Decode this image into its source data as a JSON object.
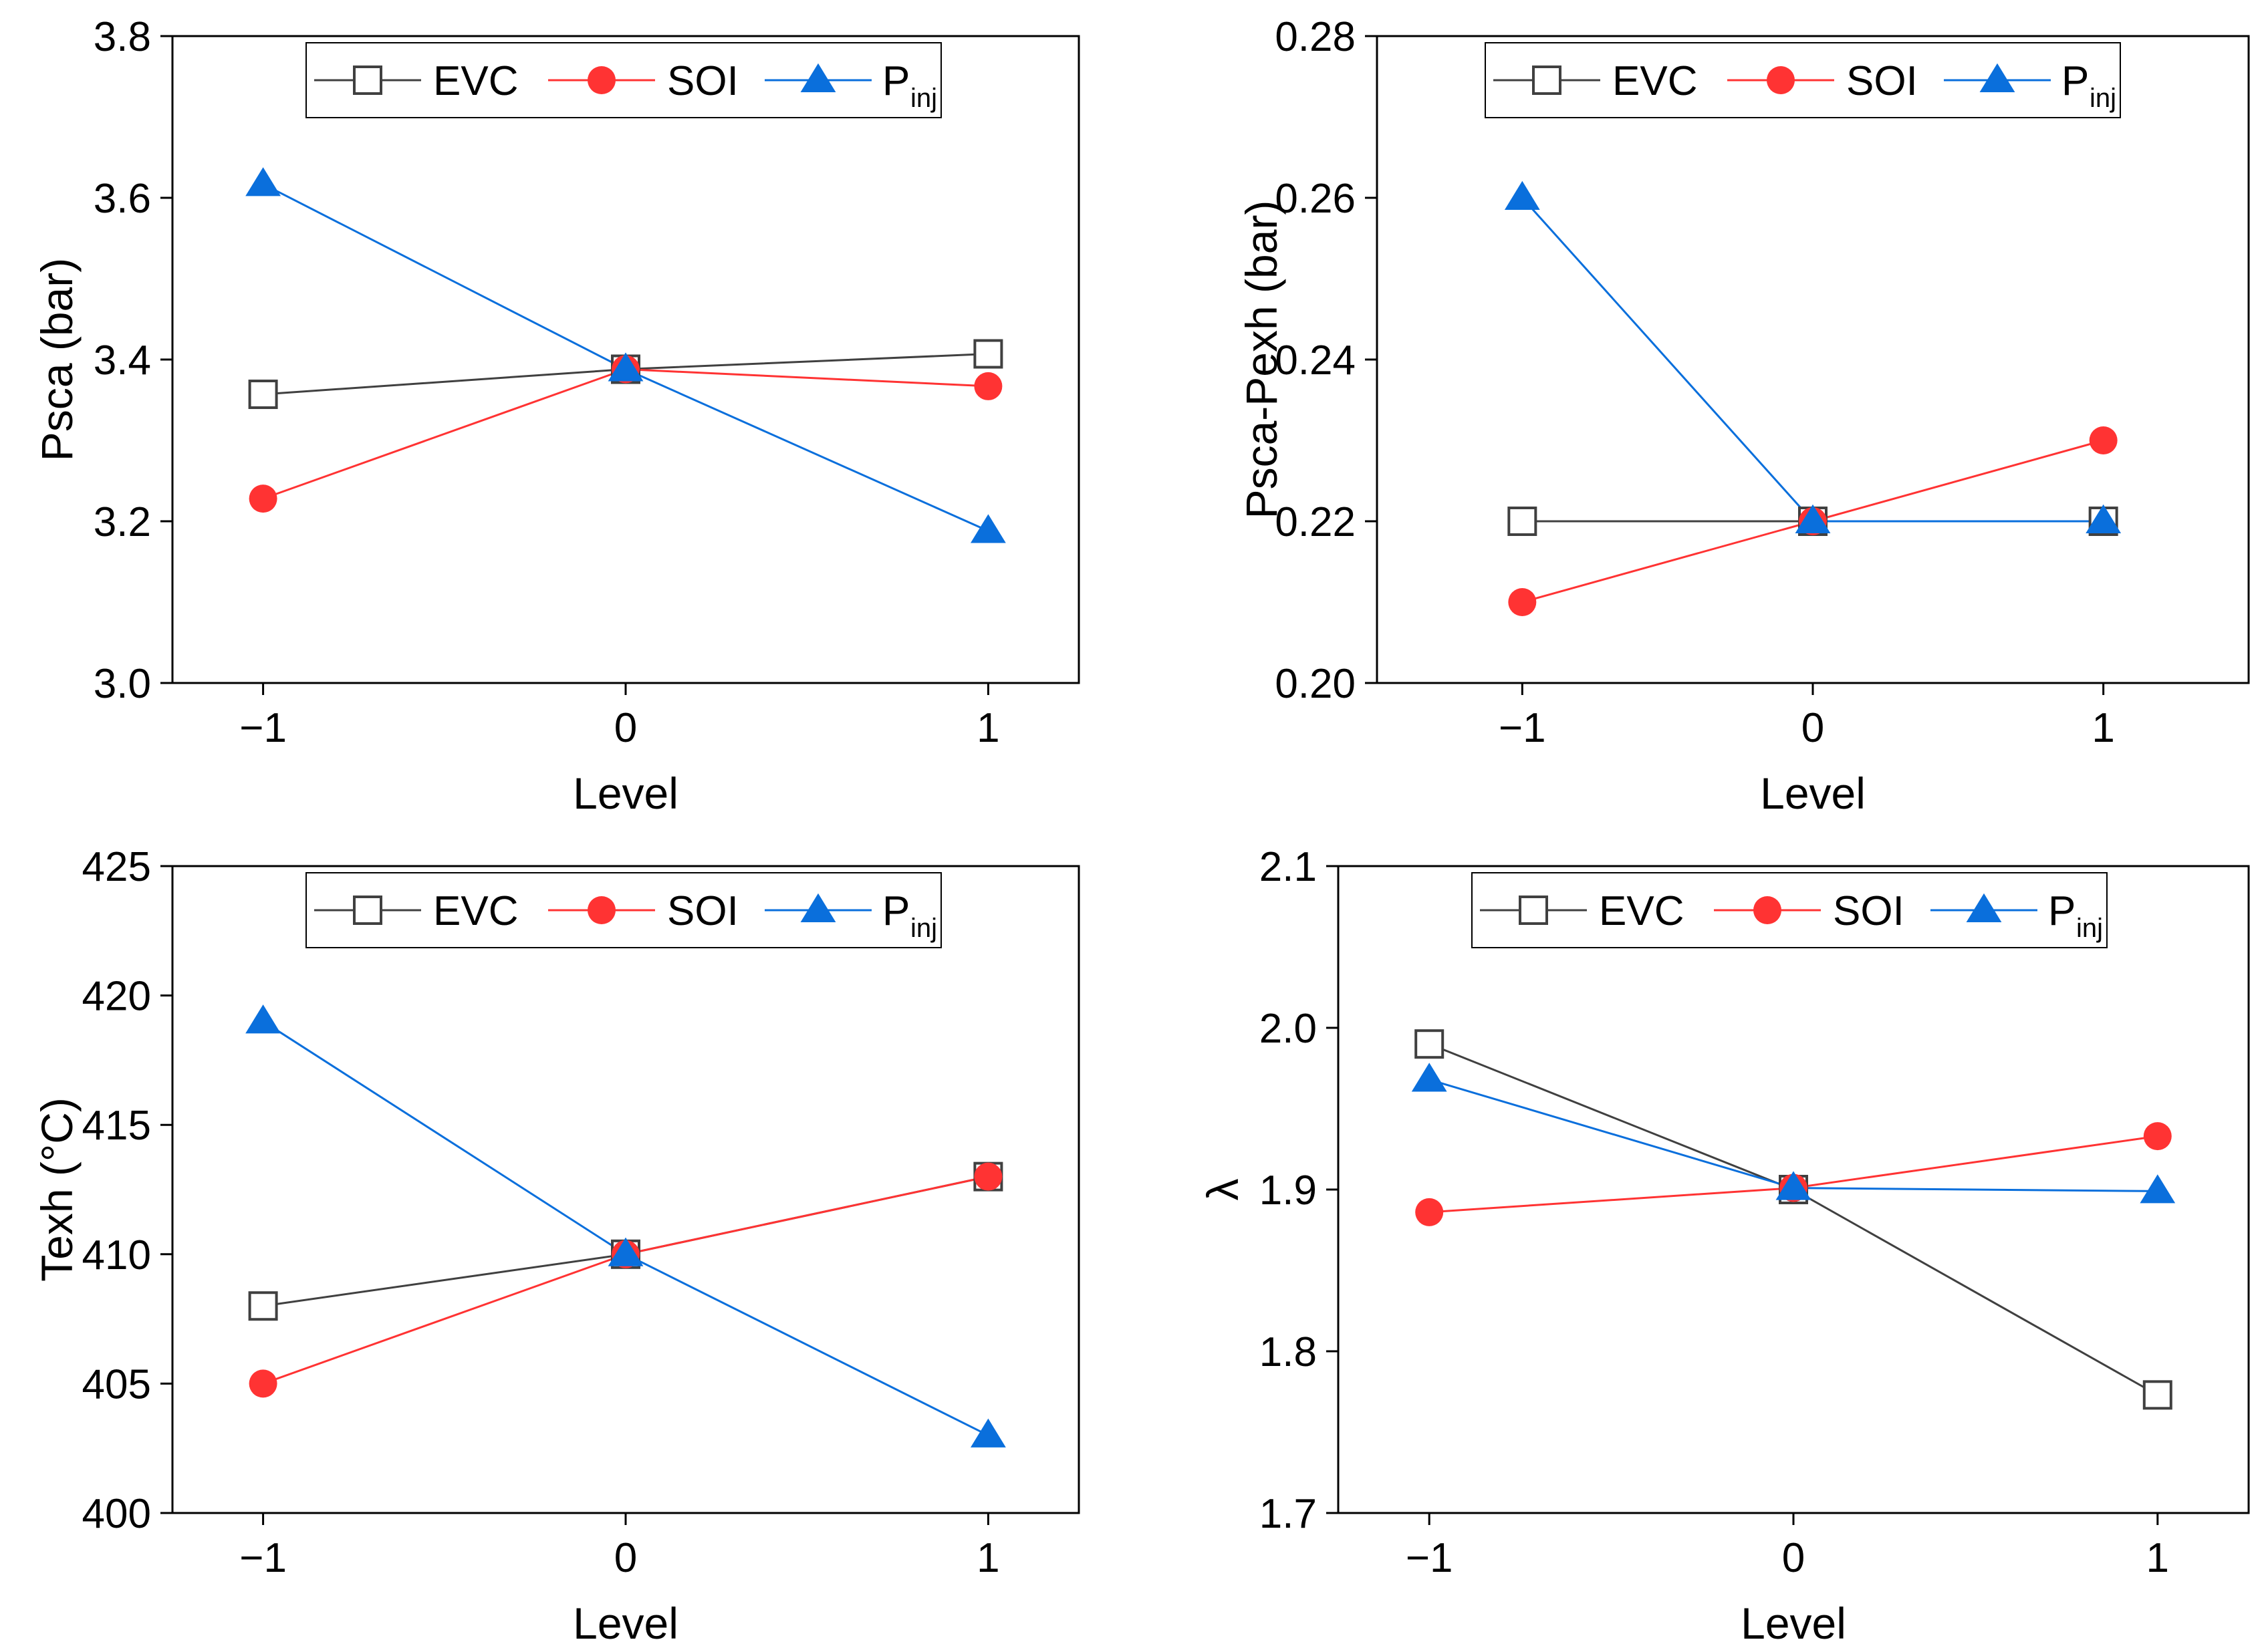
{
  "colors": {
    "EVC": "#404040",
    "SOI": "#ff3333",
    "Pinj": "#0a6fdc",
    "axis": "#000000"
  },
  "legend": {
    "EVC": "EVC",
    "SOI": "SOI",
    "Pinj_main": "P",
    "Pinj_sub": "inj"
  },
  "chart_data": [
    {
      "type": "line",
      "xlabel": "Level",
      "ylabel": "Psca (bar)",
      "x": [
        -1,
        0,
        1
      ],
      "x_tick_labels": [
        "−1",
        "0",
        "1"
      ],
      "xlim": [
        -1.25,
        1.25
      ],
      "ylim": [
        3.0,
        3.8
      ],
      "y_ticks": [
        3.0,
        3.2,
        3.4,
        3.6,
        3.8
      ],
      "y_tick_labels": [
        "3.0",
        "3.2",
        "3.4",
        "3.6",
        "3.8"
      ],
      "legend_position": "top-center",
      "series": [
        {
          "name": "EVC",
          "marker": "square-open",
          "values": [
            3.357,
            3.388,
            3.407
          ]
        },
        {
          "name": "SOI",
          "marker": "circle",
          "values": [
            3.228,
            3.388,
            3.367
          ]
        },
        {
          "name": "Pinj",
          "marker": "triangle",
          "values": [
            3.617,
            3.388,
            3.188
          ]
        }
      ]
    },
    {
      "type": "line",
      "xlabel": "Level",
      "ylabel": "Psca-Pexh (bar)",
      "x": [
        -1,
        0,
        1
      ],
      "x_tick_labels": [
        "−1",
        "0",
        "1"
      ],
      "xlim": [
        -1.5,
        1.5
      ],
      "ylim": [
        0.2,
        0.28
      ],
      "y_ticks": [
        0.2,
        0.22,
        0.24,
        0.26,
        0.28
      ],
      "y_tick_labels": [
        "0.20",
        "0.22",
        "0.24",
        "0.26",
        "0.28"
      ],
      "legend_position": "top-center",
      "series": [
        {
          "name": "EVC",
          "marker": "square-open",
          "values": [
            0.22,
            0.22,
            0.22
          ]
        },
        {
          "name": "SOI",
          "marker": "circle",
          "values": [
            0.21,
            0.22,
            0.23
          ]
        },
        {
          "name": "Pinj",
          "marker": "triangle",
          "values": [
            0.26,
            0.22,
            0.22
          ]
        }
      ]
    },
    {
      "type": "line",
      "xlabel": "Level",
      "ylabel": "Texh (°C)",
      "x": [
        -1,
        0,
        1
      ],
      "x_tick_labels": [
        "−1",
        "0",
        "1"
      ],
      "xlim": [
        -1.25,
        1.25
      ],
      "ylim": [
        400,
        425
      ],
      "y_ticks": [
        400,
        405,
        410,
        415,
        420,
        425
      ],
      "y_tick_labels": [
        "400",
        "405",
        "410",
        "415",
        "420",
        "425"
      ],
      "legend_position": "top-center",
      "series": [
        {
          "name": "EVC",
          "marker": "square-open",
          "values": [
            408,
            410,
            413
          ]
        },
        {
          "name": "SOI",
          "marker": "circle",
          "values": [
            405,
            410,
            413
          ]
        },
        {
          "name": "Pinj",
          "marker": "triangle",
          "values": [
            419,
            410,
            403
          ]
        }
      ]
    },
    {
      "type": "line",
      "xlabel": "Level",
      "ylabel": "λ",
      "x": [
        -1,
        0,
        1
      ],
      "x_tick_labels": [
        "−1",
        "0",
        "1"
      ],
      "xlim": [
        -1.25,
        1.25
      ],
      "ylim": [
        1.7,
        2.1
      ],
      "y_ticks": [
        1.7,
        1.8,
        1.9,
        2.0,
        2.1
      ],
      "y_tick_labels": [
        "1.7",
        "1.8",
        "1.9",
        "2.0",
        "2.1"
      ],
      "legend_position": "top-center",
      "series": [
        {
          "name": "EVC",
          "marker": "square-open",
          "values": [
            1.99,
            1.9,
            1.773
          ]
        },
        {
          "name": "SOI",
          "marker": "circle",
          "values": [
            1.886,
            1.901,
            1.933
          ]
        },
        {
          "name": "Pinj",
          "marker": "triangle",
          "values": [
            1.968,
            1.901,
            1.899
          ]
        }
      ]
    }
  ]
}
